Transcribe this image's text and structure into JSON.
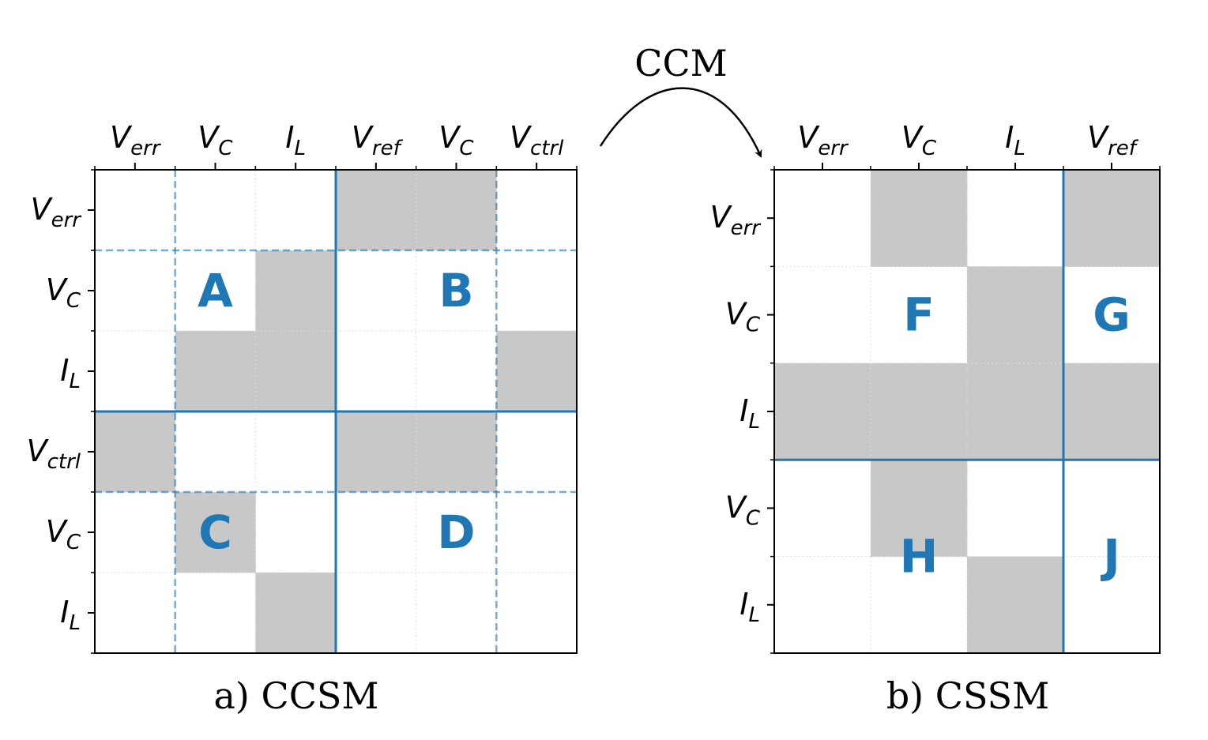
{
  "arrow_label": "CCM",
  "colors": {
    "accent": "#1f77b4",
    "filled": "#c8c8c8",
    "frame": "#000000"
  },
  "panels": [
    {
      "id": "ccsm",
      "caption": "a) CCSM",
      "cols": [
        {
          "base": "V",
          "sub": "err"
        },
        {
          "base": "V",
          "sub": "C"
        },
        {
          "base": "I",
          "sub": "L"
        },
        {
          "base": "V",
          "sub": "ref"
        },
        {
          "base": "V",
          "sub": "C"
        },
        {
          "base": "V",
          "sub": "ctrl"
        }
      ],
      "rows": [
        {
          "base": "V",
          "sub": "err"
        },
        {
          "base": "V",
          "sub": "C"
        },
        {
          "base": "I",
          "sub": "L"
        },
        {
          "base": "V",
          "sub": "ctrl"
        },
        {
          "base": "V",
          "sub": "C"
        },
        {
          "base": "I",
          "sub": "L"
        }
      ],
      "filled": [
        [
          0,
          0,
          0,
          1,
          1,
          0
        ],
        [
          0,
          0,
          1,
          0,
          0,
          0
        ],
        [
          0,
          1,
          1,
          0,
          0,
          1
        ],
        [
          1,
          0,
          0,
          1,
          1,
          0
        ],
        [
          0,
          1,
          0,
          0,
          0,
          0
        ],
        [
          0,
          0,
          1,
          0,
          0,
          0
        ]
      ],
      "solid_split": {
        "row": 3,
        "col": 3
      },
      "dashed_rows": [
        1,
        4
      ],
      "dashed_cols": [
        1,
        5
      ],
      "blocks": [
        {
          "label": "A",
          "row": 1,
          "col": 1
        },
        {
          "label": "B",
          "row": 1,
          "col": 4
        },
        {
          "label": "C",
          "row": 4,
          "col": 1
        },
        {
          "label": "D",
          "row": 4,
          "col": 4
        }
      ]
    },
    {
      "id": "cssm",
      "caption": "b) CSSM",
      "cols": [
        {
          "base": "V",
          "sub": "err"
        },
        {
          "base": "V",
          "sub": "C"
        },
        {
          "base": "I",
          "sub": "L"
        },
        {
          "base": "V",
          "sub": "ref"
        }
      ],
      "rows": [
        {
          "base": "V",
          "sub": "err"
        },
        {
          "base": "V",
          "sub": "C"
        },
        {
          "base": "I",
          "sub": "L"
        },
        {
          "base": "V",
          "sub": "C"
        },
        {
          "base": "I",
          "sub": "L"
        }
      ],
      "filled": [
        [
          0,
          1,
          0,
          1
        ],
        [
          0,
          0,
          1,
          0
        ],
        [
          1,
          1,
          1,
          1
        ],
        [
          0,
          1,
          0,
          0
        ],
        [
          0,
          0,
          1,
          0
        ]
      ],
      "solid_split": {
        "row": 3,
        "col": 3
      },
      "dashed_rows": [],
      "dashed_cols": [],
      "blocks": [
        {
          "label": "F",
          "row": 1,
          "col": 1
        },
        {
          "label": "G",
          "row": 1,
          "col": 3
        },
        {
          "label": "H",
          "row": 4,
          "col": 1,
          "offset": -0.5
        },
        {
          "label": "J",
          "row": 4,
          "col": 3,
          "offset": -0.5
        }
      ]
    }
  ]
}
